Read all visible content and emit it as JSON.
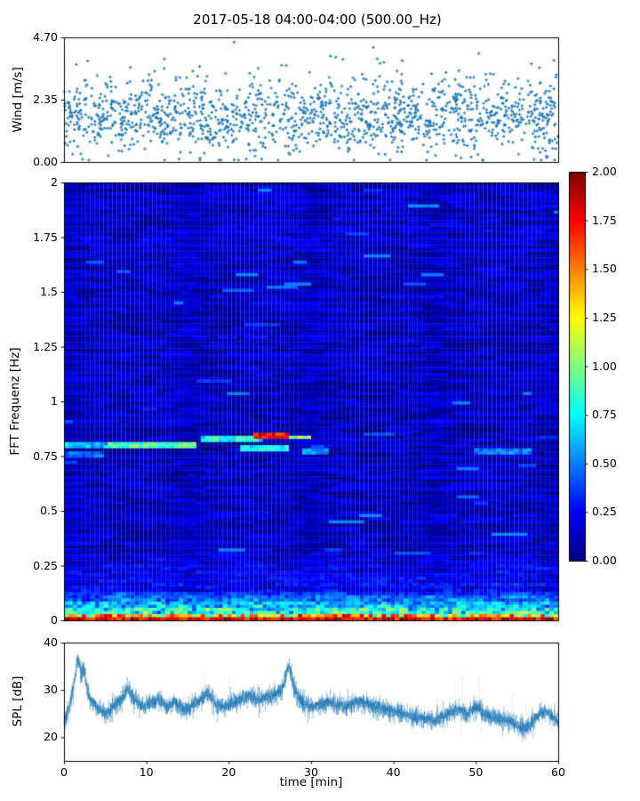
{
  "figure": {
    "title": "2017-05-18 04:00-04:00 (500.00_Hz)",
    "background": "#ffffff",
    "accent_color": "#1f77b4"
  },
  "chart_data": [
    {
      "id": "wind",
      "type": "scatter",
      "ylabel": "Wind [m/s]",
      "marker": "+",
      "color": "#1f77b4",
      "xlim": [
        0,
        60
      ],
      "ylim": [
        0,
        4.7
      ],
      "ytick_labels": [
        "0.00",
        "2.35",
        "4.70"
      ],
      "ytick_values": [
        0,
        2.35,
        4.7
      ],
      "n_points": 1500,
      "distribution": {
        "mean": 1.75,
        "sd": 0.72,
        "min": 0.07,
        "max": 4.65,
        "outlier_prob": 0.012,
        "outlier_boost_min": 1.2,
        "outlier_boost_span": 1.3
      },
      "summary": "Dense cloud of + markers, wind speed mostly 0.5-3.5 m/s, mean ~1.8, sparse outliers up to ~4.7"
    },
    {
      "id": "spectrogram",
      "type": "heatmap",
      "ylabel": "FFT Frequenz [Hz]",
      "colormap": "jet",
      "clim": [
        0,
        2
      ],
      "xlim": [
        0,
        60
      ],
      "ylim": [
        0,
        2
      ],
      "ytick_labels": [
        "0",
        "0.25",
        "0.5",
        "0.75",
        "1",
        "1.25",
        "1.5",
        "1.75",
        "2"
      ],
      "ytick_values": [
        0,
        0.25,
        0.5,
        0.75,
        1,
        1.25,
        1.5,
        1.75,
        2
      ],
      "grid_cols": 112,
      "grid_rows": 140,
      "background_noise": {
        "row_base_min": 0.05,
        "row_base_span": 0.09,
        "seg_len_min": 2,
        "seg_len_span": 7,
        "seg_amp": 0.2,
        "cell_jitter": 0.05,
        "bright_dash_prob": 0.012,
        "bright_dash_min": 0.18,
        "bright_dash_span": 0.25,
        "value_floor": 0.02,
        "value_cap": 0.5
      },
      "low_freq_band": {
        "boost1_below_hz": 0.32,
        "boost1_min": 0.08,
        "boost1_span": 0.3,
        "boost2_below_hz": 0.13,
        "boost2_min": 0.35,
        "boost2_span": 0.75,
        "bottom_row_min": 1.55,
        "bottom_row_span": 0.45,
        "second_row_low_min": 0.75,
        "second_row_low_span": 0.5,
        "second_row_high_min": 1.3,
        "second_row_high_span": 0.6,
        "second_row_high_prob": 0.55
      },
      "features": [
        {
          "t0": 0,
          "t1": 5.5,
          "f": 0.8,
          "df": 0.015,
          "value": 0.62,
          "spread": 0.3,
          "note": "cyan line start"
        },
        {
          "t0": 5.5,
          "t1": 15.5,
          "f": 0.805,
          "df": 0.015,
          "value": 0.9,
          "spread": 0.35,
          "note": "bright cyan line 0.8 Hz"
        },
        {
          "t0": 0,
          "t1": 4,
          "f": 0.755,
          "df": 0.012,
          "value": 0.45,
          "spread": 0.2,
          "note": "faint lower line left edge"
        },
        {
          "t0": 17,
          "t1": 23.5,
          "f": 0.835,
          "df": 0.015,
          "value": 0.8,
          "spread": 0.4,
          "note": "line jumps higher"
        },
        {
          "t0": 23.5,
          "t1": 26.5,
          "f": 0.84,
          "df": 0.013,
          "value": 1.75,
          "spread": 0.4,
          "note": "red-hot segment"
        },
        {
          "t0": 26.5,
          "t1": 29,
          "f": 0.835,
          "df": 0.013,
          "value": 1.05,
          "spread": 0.4,
          "note": "green-yellow tail"
        },
        {
          "t0": 21.5,
          "t1": 26.5,
          "f": 0.79,
          "df": 0.013,
          "value": 0.75,
          "spread": 0.3,
          "note": "second cyan line"
        },
        {
          "t0": 29,
          "t1": 31.5,
          "f": 0.77,
          "df": 0.012,
          "value": 0.55,
          "spread": 0.25,
          "note": "faint continuation"
        },
        {
          "t0": 50,
          "t1": 56,
          "f": 0.775,
          "df": 0.012,
          "value": 0.5,
          "spread": 0.25,
          "note": "faint cyan right side"
        },
        {
          "t0": 42,
          "t1": 44.5,
          "f": 1.895,
          "df": 0.012,
          "value": 0.5,
          "spread": 0.15,
          "note": "light blue spot top"
        },
        {
          "t0": 36.5,
          "t1": 39.5,
          "f": 0.85,
          "df": 0.012,
          "value": 0.42,
          "spread": 0.15,
          "note": "faint light streak"
        }
      ],
      "summary": "Mostly dark blue noise field with horizontal dash texture; bright band below ~0.12 Hz turning orange/red at 0 Hz; narrowband tonal line near 0.8 Hz during first half hour"
    },
    {
      "id": "spl",
      "type": "line",
      "ylabel": "SPL [dB]",
      "xlabel": "time [min]",
      "color": "#1f77b4",
      "xlim": [
        0,
        60
      ],
      "ylim": [
        15,
        40
      ],
      "ytick_labels": [
        "20",
        "30",
        "40"
      ],
      "ytick_values": [
        20,
        30,
        40
      ],
      "xtick_labels": [
        "0",
        "10",
        "20",
        "30",
        "40",
        "50",
        "60"
      ],
      "xtick_values": [
        0,
        10,
        20,
        30,
        40,
        50,
        60
      ],
      "n_samples": 3000,
      "noise_sd": 0.85,
      "envelope": [
        [
          0,
          23
        ],
        [
          0.7,
          27
        ],
        [
          1.2,
          31
        ],
        [
          1.7,
          36.5
        ],
        [
          2.1,
          33.5
        ],
        [
          2.4,
          35
        ],
        [
          3,
          28.5
        ],
        [
          4,
          26.5
        ],
        [
          5,
          25
        ],
        [
          6,
          26.5
        ],
        [
          7,
          28
        ],
        [
          7.7,
          30.5
        ],
        [
          8.5,
          28.5
        ],
        [
          9.5,
          26.5
        ],
        [
          10.5,
          27.5
        ],
        [
          11.5,
          28
        ],
        [
          12.5,
          26.5
        ],
        [
          13.5,
          27.5
        ],
        [
          14.5,
          26
        ],
        [
          15.5,
          26.5
        ],
        [
          16.5,
          28
        ],
        [
          17.5,
          29.5
        ],
        [
          18.5,
          27
        ],
        [
          19.5,
          26.5
        ],
        [
          20.5,
          27.5
        ],
        [
          21.5,
          28
        ],
        [
          22.5,
          29
        ],
        [
          23.5,
          28
        ],
        [
          24.5,
          28.5
        ],
        [
          25.5,
          29
        ],
        [
          26.5,
          30
        ],
        [
          27.3,
          35.5
        ],
        [
          28,
          30
        ],
        [
          29,
          27.5
        ],
        [
          30,
          26.5
        ],
        [
          31,
          27
        ],
        [
          32,
          27.5
        ],
        [
          33,
          27
        ],
        [
          34,
          26.5
        ],
        [
          35,
          27
        ],
        [
          36,
          27.5
        ],
        [
          37,
          27
        ],
        [
          38,
          26.5
        ],
        [
          39,
          26
        ],
        [
          40,
          25.5
        ],
        [
          41,
          25
        ],
        [
          42,
          24.5
        ],
        [
          43,
          24
        ],
        [
          44,
          24
        ],
        [
          45,
          23.5
        ],
        [
          46,
          24.5
        ],
        [
          47,
          25.5
        ],
        [
          48,
          26
        ],
        [
          49,
          25
        ],
        [
          50,
          26.5
        ],
        [
          51,
          25
        ],
        [
          52,
          24.5
        ],
        [
          53,
          24
        ],
        [
          54,
          23.5
        ],
        [
          55,
          22.5
        ],
        [
          56,
          22
        ],
        [
          57,
          23.5
        ],
        [
          58,
          25.5
        ],
        [
          59,
          25
        ],
        [
          60,
          23.5
        ]
      ],
      "spikes": {
        "base_prob": 0.004,
        "dense_region": [
          44,
          59
        ],
        "dense_prob": 0.014,
        "up_min": 3,
        "up_span": 5,
        "down_min": 2.5,
        "down_span": 3,
        "up_fraction": 0.6
      },
      "summary": "Noisy SPL trace around 26-28 dB, peak ~40 dB near t=1.7 min, peak ~37 near t=27.5, slow decline to ~22 dB near t=55 with thin vertical spikes between 44 and 59 min"
    }
  ],
  "colorbar": {
    "colormap": "jet",
    "clim": [
      0,
      2
    ],
    "tick_labels": [
      "0.00",
      "0.25",
      "0.50",
      "0.75",
      "1.00",
      "1.25",
      "1.50",
      "1.75",
      "2.00"
    ],
    "tick_values": [
      0,
      0.25,
      0.5,
      0.75,
      1,
      1.25,
      1.5,
      1.75,
      2
    ]
  }
}
